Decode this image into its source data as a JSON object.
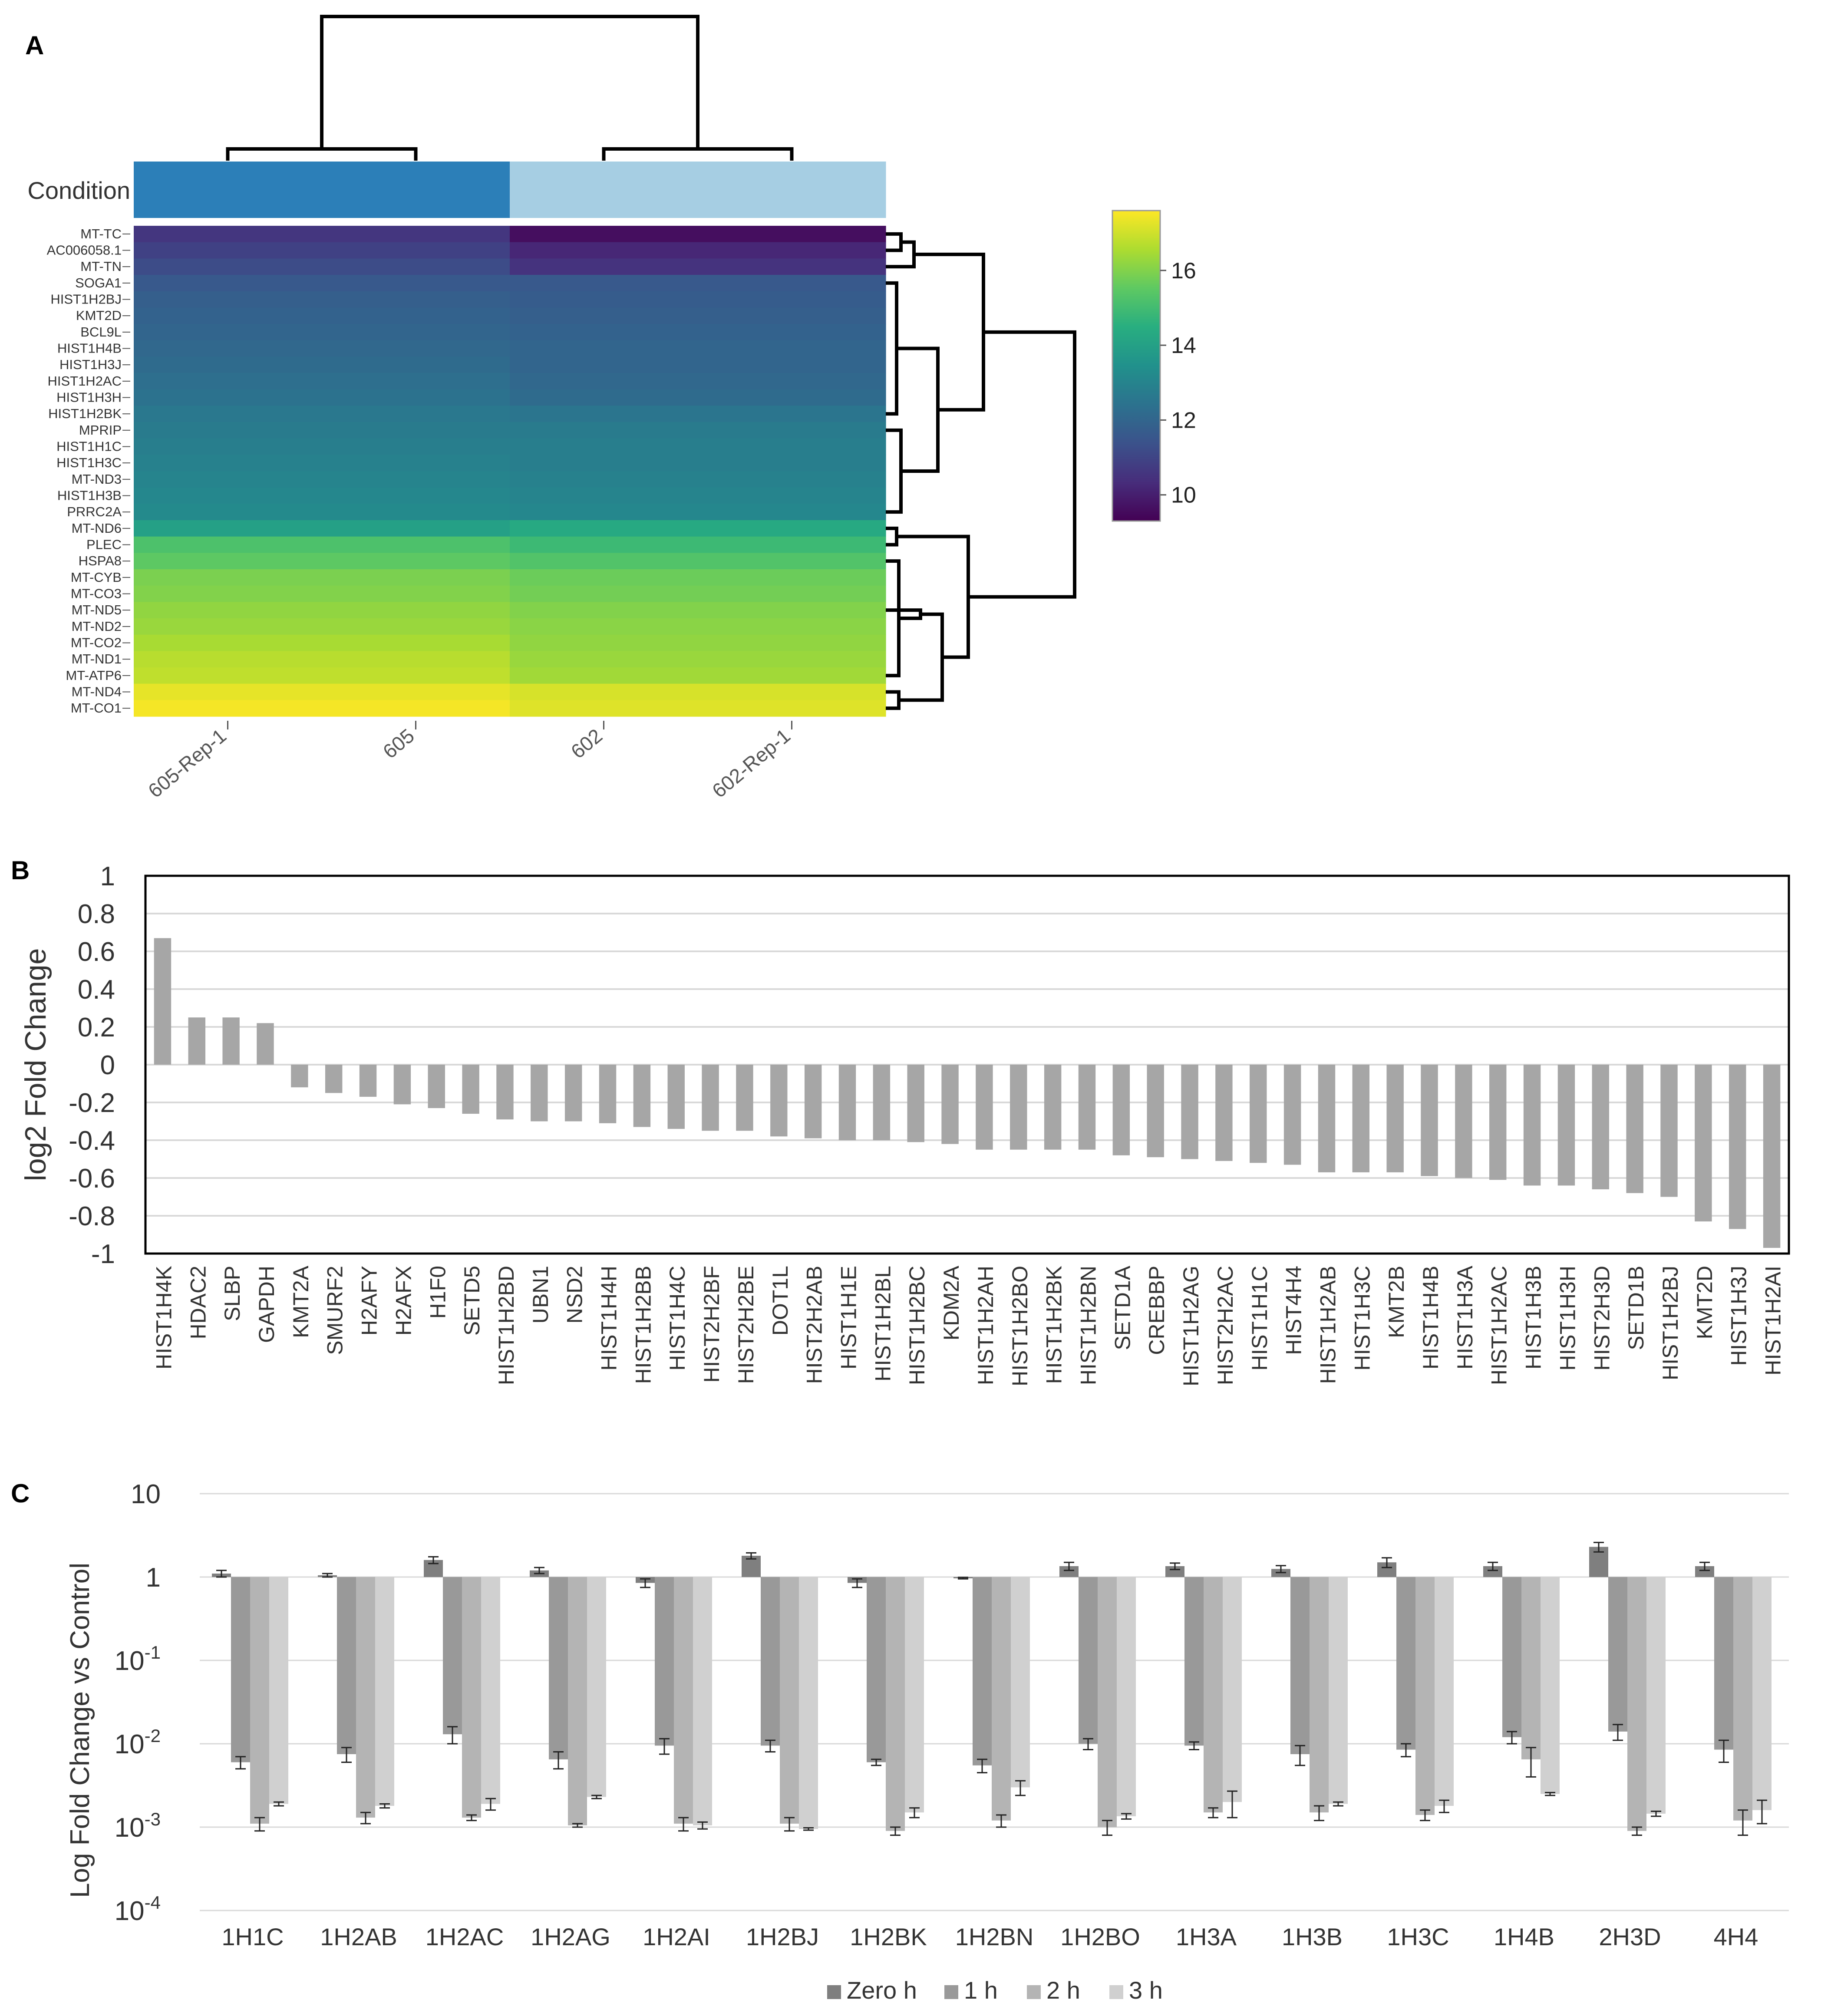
{
  "chart_data": [
    {
      "panel": "A",
      "type": "heatmap",
      "annotation_label": "Condition",
      "columns": [
        "605-Rep-1",
        "605",
        "602",
        "602-Rep-1"
      ],
      "rows": [
        "MT-TC",
        "AC006058.1",
        "MT-TN",
        "SOGA1",
        "HIST1H2BJ",
        "KMT2D",
        "BCL9L",
        "HIST1H4B",
        "HIST1H3J",
        "HIST1H2AC",
        "HIST1H3H",
        "HIST1H2BK",
        "MPRIP",
        "HIST1H1C",
        "HIST1H3C",
        "MT-ND3",
        "HIST1H3B",
        "PRRC2A",
        "MT-ND6",
        "PLEC",
        "HSPA8",
        "MT-CYB",
        "MT-CO3",
        "MT-ND5",
        "MT-ND2",
        "MT-CO2",
        "MT-ND1",
        "MT-ATP6",
        "MT-ND4",
        "MT-CO1"
      ],
      "values": [
        [
          10.6,
          10.6,
          9.6,
          9.6
        ],
        [
          10.9,
          10.9,
          10.2,
          10.2
        ],
        [
          11.2,
          11.2,
          10.5,
          10.5
        ],
        [
          11.6,
          11.6,
          11.6,
          11.6
        ],
        [
          11.8,
          11.8,
          11.7,
          11.7
        ],
        [
          11.9,
          11.9,
          11.8,
          11.8
        ],
        [
          12.0,
          12.0,
          11.9,
          11.9
        ],
        [
          12.1,
          12.1,
          12.0,
          12.0
        ],
        [
          12.2,
          12.2,
          12.0,
          12.0
        ],
        [
          12.3,
          12.3,
          12.1,
          12.1
        ],
        [
          12.4,
          12.4,
          12.2,
          12.2
        ],
        [
          12.6,
          12.6,
          12.5,
          12.5
        ],
        [
          12.7,
          12.7,
          12.7,
          12.7
        ],
        [
          12.8,
          12.8,
          12.8,
          12.8
        ],
        [
          12.9,
          12.9,
          12.8,
          12.8
        ],
        [
          13.0,
          13.0,
          12.9,
          12.9
        ],
        [
          13.1,
          13.1,
          13.0,
          13.0
        ],
        [
          13.2,
          13.2,
          13.1,
          13.1
        ],
        [
          14.0,
          14.0,
          14.3,
          14.3
        ],
        [
          15.2,
          15.2,
          14.9,
          14.9
        ],
        [
          15.5,
          15.5,
          15.3,
          15.3
        ],
        [
          15.9,
          15.9,
          15.7,
          15.7
        ],
        [
          16.0,
          16.0,
          15.8,
          15.8
        ],
        [
          16.2,
          16.2,
          16.0,
          16.0
        ],
        [
          16.3,
          16.3,
          16.1,
          16.1
        ],
        [
          16.5,
          16.5,
          16.2,
          16.2
        ],
        [
          16.7,
          16.7,
          16.3,
          16.3
        ],
        [
          16.8,
          16.8,
          16.4,
          16.4
        ],
        [
          17.3,
          17.3,
          17.1,
          17.1
        ],
        [
          17.5,
          17.5,
          17.2,
          17.2
        ]
      ],
      "colorbar": {
        "min": 9.3,
        "max": 17.6,
        "ticks": [
          "10",
          "12",
          "14",
          "16"
        ],
        "tick_values": [
          10,
          12,
          14,
          16
        ]
      },
      "condition_colors": [
        "#2c7fb8",
        "#2c7fb8",
        "#a6cee3",
        "#a6cee3"
      ]
    },
    {
      "panel": "B",
      "type": "bar",
      "ylabel": "log2 Fold Change",
      "ylim": [
        -1,
        1
      ],
      "yticks": [
        "1",
        "0.8",
        "0.6",
        "0.4",
        "0.2",
        "0",
        "-0.2",
        "-0.4",
        "-0.6",
        "-0.8",
        "-1"
      ],
      "ytick_values": [
        1,
        0.8,
        0.6,
        0.4,
        0.2,
        0,
        -0.2,
        -0.4,
        -0.6,
        -0.8,
        -1
      ],
      "color": "#a6a6a6",
      "categories": [
        "HIST1H4K",
        "HDAC2",
        "SLBP",
        "GAPDH",
        "KMT2A",
        "SMURF2",
        "H2AFY",
        "H2AFX",
        "H1F0",
        "SETD5",
        "HIST1H2BD",
        "UBN1",
        "NSD2",
        "HIST1H4H",
        "HIST1H2BB",
        "HIST1H4C",
        "HIST2H2BF",
        "HIST2H2BE",
        "DOT1L",
        "HIST2H2AB",
        "HIST1H1E",
        "HIST1H2BL",
        "HIST1H2BC",
        "KDM2A",
        "HIST1H2AH",
        "HIST1H2BO",
        "HIST1H2BK",
        "HIST1H2BN",
        "SETD1A",
        "CREBBP",
        "HIST1H2AG",
        "HIST2H2AC",
        "HIST1H1C",
        "HIST4H4",
        "HIST1H2AB",
        "HIST1H3C",
        "KMT2B",
        "HIST1H4B",
        "HIST1H3A",
        "HIST1H2AC",
        "HIST1H3B",
        "HIST1H3H",
        "HIST2H3D",
        "SETD1B",
        "HIST1H2BJ",
        "KMT2D",
        "HIST1H3J",
        "HIST1H2AI"
      ],
      "values": [
        0.67,
        0.25,
        0.25,
        0.22,
        -0.12,
        -0.15,
        -0.17,
        -0.21,
        -0.23,
        -0.26,
        -0.29,
        -0.3,
        -0.3,
        -0.31,
        -0.33,
        -0.34,
        -0.35,
        -0.35,
        -0.38,
        -0.39,
        -0.4,
        -0.4,
        -0.41,
        -0.42,
        -0.45,
        -0.45,
        -0.45,
        -0.45,
        -0.48,
        -0.49,
        -0.5,
        -0.51,
        -0.52,
        -0.53,
        -0.57,
        -0.57,
        -0.57,
        -0.59,
        -0.6,
        -0.61,
        -0.64,
        -0.64,
        -0.66,
        -0.68,
        -0.7,
        -0.83,
        -0.87,
        -0.97
      ]
    },
    {
      "panel": "C",
      "type": "bar",
      "ylabel": "Log Fold Change vs Control",
      "yscale": "log",
      "ylim": [
        0.0001,
        10
      ],
      "yticks": [
        {
          "base": "10",
          "exp": "",
          "value": 10
        },
        {
          "base": "1",
          "exp": "",
          "value": 1
        },
        {
          "base": "10",
          "exp": "-1",
          "value": 0.1
        },
        {
          "base": "10",
          "exp": "-2",
          "value": 0.01
        },
        {
          "base": "10",
          "exp": "-3",
          "value": 0.001
        },
        {
          "base": "10",
          "exp": "-4",
          "value": 0.0001
        }
      ],
      "categories": [
        "1H1C",
        "1H2AB",
        "1H2AC",
        "1H2AG",
        "1H2AI",
        "1H2BJ",
        "1H2BK",
        "1H2BN",
        "1H2BO",
        "1H3A",
        "1H3B",
        "1H3C",
        "1H4B",
        "2H3D",
        "4H4"
      ],
      "series": [
        {
          "name": "Zero h",
          "color": "#7f7f7f",
          "values": [
            1.1,
            1.05,
            1.6,
            1.2,
            0.85,
            1.8,
            0.85,
            0.97,
            1.35,
            1.35,
            1.25,
            1.5,
            1.35,
            2.3,
            1.35
          ],
          "errors": [
            0.1,
            0.05,
            0.15,
            0.1,
            0.1,
            0.15,
            0.1,
            0.02,
            0.15,
            0.12,
            0.12,
            0.2,
            0.15,
            0.3,
            0.15
          ]
        },
        {
          "name": "1  h",
          "color": "#999999",
          "values": [
            0.006,
            0.0075,
            0.013,
            0.0065,
            0.0095,
            0.0095,
            0.006,
            0.0055,
            0.01,
            0.0095,
            0.0075,
            0.0085,
            0.012,
            0.014,
            0.0085
          ],
          "errors": [
            0.001,
            0.0015,
            0.003,
            0.0015,
            0.002,
            0.0015,
            0.0005,
            0.001,
            0.0015,
            0.001,
            0.002,
            0.0015,
            0.002,
            0.003,
            0.0025
          ]
        },
        {
          "name": "2 h",
          "color": "#b4b4b4",
          "values": [
            0.0011,
            0.0013,
            0.0013,
            0.00105,
            0.0011,
            0.0011,
            0.0009,
            0.0012,
            0.001,
            0.0015,
            0.0015,
            0.0014,
            0.0065,
            0.0009,
            0.0012
          ],
          "errors": [
            0.0002,
            0.0002,
            0.0001,
            5e-05,
            0.0002,
            0.0002,
            0.0001,
            0.0002,
            0.0002,
            0.0002,
            0.0003,
            0.0002,
            0.0025,
            0.0001,
            0.0004
          ]
        },
        {
          "name": "3 h",
          "color": "#d0d0d0",
          "values": [
            0.0019,
            0.0018,
            0.0019,
            0.0023,
            0.00105,
            0.00095,
            0.0015,
            0.003,
            0.00135,
            0.002,
            0.0019,
            0.0018,
            0.0025,
            0.00145,
            0.0016
          ],
          "errors": [
            0.0001,
            0.0001,
            0.0003,
            0.0001,
            0.0001,
            3e-05,
            0.0002,
            0.0006,
            0.0001,
            0.0007,
            0.0001,
            0.0003,
            0.0001,
            0.0001,
            0.0005
          ]
        }
      ],
      "legend_placement": "bottom"
    }
  ]
}
